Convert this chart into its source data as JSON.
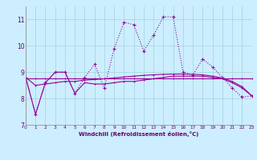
{
  "title": "",
  "xlabel": "Windchill (Refroidissement éolien,°C)",
  "bg_color": "#cceeff",
  "line_color": "#990099",
  "x": [
    0,
    1,
    2,
    3,
    4,
    5,
    6,
    7,
    8,
    9,
    10,
    11,
    12,
    13,
    14,
    15,
    16,
    17,
    18,
    19,
    20,
    21,
    22,
    23
  ],
  "series1": [
    8.8,
    7.4,
    8.6,
    9.0,
    9.0,
    8.2,
    8.8,
    9.3,
    8.4,
    9.9,
    10.9,
    10.8,
    9.8,
    10.4,
    11.1,
    11.1,
    9.0,
    8.9,
    9.5,
    9.2,
    8.8,
    8.4,
    8.05,
    8.1
  ],
  "series2": [
    8.8,
    7.4,
    8.6,
    9.0,
    9.0,
    8.2,
    8.6,
    8.55,
    8.55,
    8.6,
    8.65,
    8.65,
    8.7,
    8.75,
    8.8,
    8.85,
    8.85,
    8.85,
    8.85,
    8.8,
    8.75,
    8.6,
    8.4,
    8.1
  ],
  "series3": [
    8.75,
    8.75,
    8.75,
    8.75,
    8.75,
    8.75,
    8.75,
    8.75,
    8.75,
    8.75,
    8.75,
    8.75,
    8.75,
    8.75,
    8.75,
    8.75,
    8.75,
    8.75,
    8.75,
    8.75,
    8.75,
    8.75,
    8.75,
    8.75
  ],
  "series4": [
    8.8,
    8.5,
    8.55,
    8.6,
    8.65,
    8.65,
    8.7,
    8.72,
    8.75,
    8.78,
    8.82,
    8.85,
    8.88,
    8.9,
    8.92,
    8.93,
    8.93,
    8.92,
    8.9,
    8.85,
    8.78,
    8.65,
    8.45,
    8.1
  ],
  "xlim": [
    0,
    23
  ],
  "ylim": [
    7.0,
    11.5
  ],
  "yticks": [
    7,
    8,
    9,
    10,
    11
  ],
  "xticks": [
    0,
    1,
    2,
    3,
    4,
    5,
    6,
    7,
    8,
    9,
    10,
    11,
    12,
    13,
    14,
    15,
    16,
    17,
    18,
    19,
    20,
    21,
    22,
    23
  ]
}
